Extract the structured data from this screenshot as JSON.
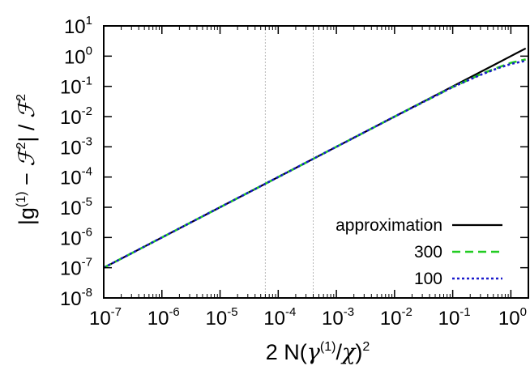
{
  "chart_data": {
    "type": "line",
    "xlabel": "2 N(γ(1)/χ)2",
    "ylabel": "|g(1) − ℱ2| / ℱ2",
    "x_scale": "log",
    "y_scale": "log",
    "xlim": [
      1e-07,
      2
    ],
    "ylim": [
      1e-08,
      10
    ],
    "x_tick_labels": [
      "10-7",
      "10-6",
      "10-5",
      "10-4",
      "10-3",
      "10-2",
      "10-1",
      "100"
    ],
    "y_tick_labels": [
      "10-8",
      "10-7",
      "10-6",
      "10-5",
      "10-4",
      "10-3",
      "10-2",
      "10-1",
      "100",
      "101"
    ],
    "vertical_reference_lines_x": [
      6e-05,
      0.0004
    ],
    "legend_position": "bottom-right",
    "series": [
      {
        "name": "approximation",
        "color": "#000000",
        "style": "solid",
        "x": [
          1e-07,
          1e-06,
          1e-05,
          0.0001,
          0.001,
          0.01,
          0.1,
          0.5,
          1,
          1.8
        ],
        "y": [
          1e-07,
          1e-06,
          1e-05,
          0.0001,
          0.001,
          0.01,
          0.1,
          0.5,
          1,
          1.8
        ]
      },
      {
        "name": "300",
        "color": "#22cc22",
        "style": "dashed",
        "x": [
          1e-07,
          1e-06,
          1e-05,
          0.0001,
          0.001,
          0.01,
          0.1,
          0.3,
          0.6,
          1,
          1.8
        ],
        "y": [
          1e-07,
          1e-06,
          1e-05,
          0.0001,
          0.001,
          0.01,
          0.095,
          0.25,
          0.42,
          0.6,
          0.78
        ]
      },
      {
        "name": "100",
        "color": "#1a1acc",
        "style": "dotted",
        "x": [
          1e-07,
          1e-06,
          1e-05,
          0.0001,
          0.001,
          0.01,
          0.1,
          0.3,
          0.6,
          1,
          1.8
        ],
        "y": [
          1e-07,
          1e-06,
          1e-05,
          0.0001,
          0.001,
          0.01,
          0.095,
          0.24,
          0.4,
          0.55,
          0.7
        ]
      }
    ]
  }
}
